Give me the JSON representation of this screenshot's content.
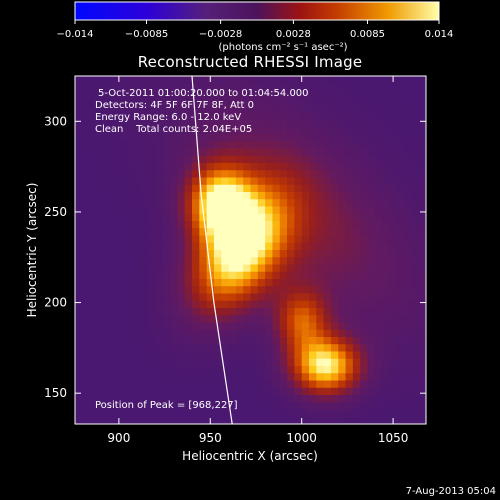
{
  "chart_data": {
    "type": "heatmap",
    "title": "Reconstructed RHESSI Image",
    "colorbar": {
      "min": -0.014,
      "max": 0.014,
      "ticks": [
        "-0.014",
        "-0.0085",
        "-0.0028",
        "0.0028",
        "0.0085",
        "0.014"
      ],
      "label": "(photons cm⁻² s⁻¹ asec⁻²)"
    },
    "xlabel": "Heliocentric X (arcsec)",
    "ylabel": "Heliocentric Y (arcsec)",
    "xlim": [
      876,
      1068
    ],
    "ylim": [
      133,
      325
    ],
    "xticks": [
      900,
      950,
      1000,
      1050
    ],
    "yticks": [
      150,
      200,
      250,
      300
    ],
    "sources": [
      {
        "x": 966,
        "y": 228,
        "sx": 15,
        "sy": 25,
        "angle": -32,
        "peak": 1.0
      },
      {
        "x": 955,
        "y": 255,
        "sx": 12,
        "sy": 14,
        "angle": 0,
        "peak": 0.9
      },
      {
        "x": 1013,
        "y": 165,
        "sx": 13,
        "sy": 11,
        "angle": 0,
        "peak": 0.95
      },
      {
        "x": 1000,
        "y": 190,
        "sx": 10,
        "sy": 12,
        "angle": 0,
        "peak": 0.55
      },
      {
        "x": 1000,
        "y": 250,
        "sx": 28,
        "sy": 55,
        "angle": 45,
        "peak": 0.3
      }
    ],
    "annotations": {
      "time_range": "5-Oct-2011 01:00:20.000 to 01:04:54.000",
      "detectors": "Detectors: 4F 5F 6F 7F 8F, Att 0",
      "energy": "Energy Range: 6.0 - 12.0 keV",
      "clean": "Clean    Total counts: 2.04E+05",
      "peak": "Position of Peak = [968,227]"
    },
    "limb_curve": [
      [
        940,
        325
      ],
      [
        945,
        260
      ],
      [
        952,
        200
      ],
      [
        962,
        133
      ]
    ],
    "footer_date": "7-Aug-2013 05:04"
  }
}
